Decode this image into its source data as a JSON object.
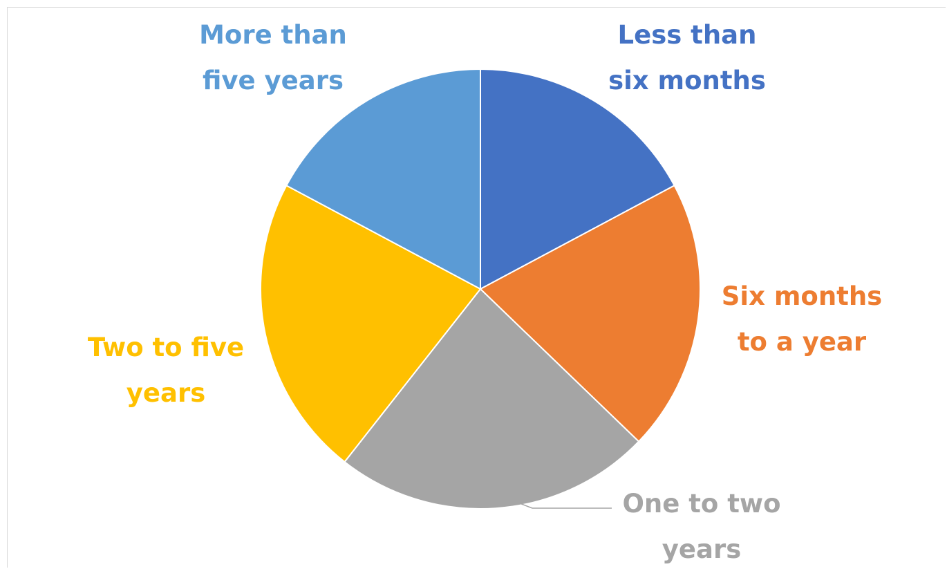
{
  "chart_data": {
    "type": "pie",
    "title": "",
    "slices": [
      {
        "label_lines": [
          "Less than",
          "six months"
        ],
        "value": 17.2,
        "color": "#4472C4"
      },
      {
        "label_lines": [
          "Six months",
          "to a year"
        ],
        "value": 20.0,
        "color": "#ED7D31"
      },
      {
        "label_lines": [
          "One to two",
          "years"
        ],
        "value": 23.4,
        "color": "#A5A5A5"
      },
      {
        "label_lines": [
          "Two to five",
          "years"
        ],
        "value": 22.2,
        "color": "#FFC000"
      },
      {
        "label_lines": [
          "More than",
          "five years"
        ],
        "value": 17.2,
        "color": "#5B9BD5"
      }
    ],
    "legend": "none",
    "data_labels": "category name outside end"
  }
}
